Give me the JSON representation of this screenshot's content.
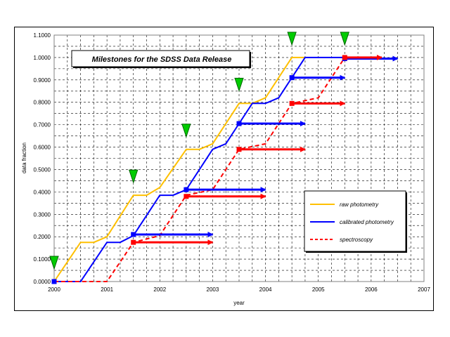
{
  "chart_data": {
    "type": "line",
    "title": "Milestones for the SDSS Data Release",
    "xlabel": "year",
    "ylabel": "data fraction",
    "xlim": [
      2000,
      2007
    ],
    "ylim": [
      0,
      1.1
    ],
    "grid": true,
    "legend_position": "lower-right",
    "x_ticks": [
      "2000",
      "2001",
      "2002",
      "2003",
      "2004",
      "2005",
      "2006",
      "2007"
    ],
    "y_ticks": [
      "0.0000",
      "0.1000",
      "0.2000",
      "0.3000",
      "0.4000",
      "0.5000",
      "0.6000",
      "0.7000",
      "0.8000",
      "0.9000",
      "1.0000",
      "1.1000"
    ],
    "series": [
      {
        "name": "raw photometry",
        "color": "#ffc000",
        "dash": "solid",
        "points": [
          [
            2000.0,
            0.0
          ],
          [
            2000.5,
            0.175
          ],
          [
            2000.75,
            0.175
          ],
          [
            2001.0,
            0.2
          ],
          [
            2001.5,
            0.385
          ],
          [
            2001.75,
            0.385
          ],
          [
            2002.0,
            0.42
          ],
          [
            2002.5,
            0.59
          ],
          [
            2002.75,
            0.59
          ],
          [
            2003.0,
            0.615
          ],
          [
            2003.5,
            0.795
          ],
          [
            2003.75,
            0.795
          ],
          [
            2004.0,
            0.82
          ],
          [
            2004.5,
            1.0
          ],
          [
            2004.75,
            1.0
          ]
        ]
      },
      {
        "name": "calibrated photometry",
        "color": "#0000ff",
        "dash": "solid",
        "points": [
          [
            2000.0,
            0.0
          ],
          [
            2000.5,
            0.0
          ],
          [
            2001.0,
            0.175
          ],
          [
            2001.25,
            0.175
          ],
          [
            2001.5,
            0.205
          ],
          [
            2002.0,
            0.385
          ],
          [
            2002.25,
            0.385
          ],
          [
            2002.5,
            0.41
          ],
          [
            2003.0,
            0.59
          ],
          [
            2003.25,
            0.615
          ],
          [
            2003.5,
            0.705
          ],
          [
            2003.75,
            0.795
          ],
          [
            2004.0,
            0.795
          ],
          [
            2004.25,
            0.82
          ],
          [
            2004.5,
            0.91
          ],
          [
            2004.75,
            1.0
          ],
          [
            2005.5,
            1.0
          ]
        ]
      },
      {
        "name": "spectroscopy",
        "color": "#ff0000",
        "dash": "dashed",
        "points": [
          [
            2000.0,
            0.0
          ],
          [
            2001.0,
            0.0
          ],
          [
            2001.5,
            0.175
          ],
          [
            2002.0,
            0.205
          ],
          [
            2002.5,
            0.385
          ],
          [
            2003.0,
            0.41
          ],
          [
            2003.5,
            0.59
          ],
          [
            2004.0,
            0.615
          ],
          [
            2004.5,
            0.795
          ],
          [
            2005.0,
            0.82
          ],
          [
            2005.5,
            1.0
          ]
        ]
      }
    ],
    "milestone_arrows": [
      {
        "color": "#0000ff",
        "x_start": 2001.5,
        "x_end": 2003.0,
        "y": 0.21,
        "marker": true
      },
      {
        "color": "#ff0000",
        "x_start": 2001.5,
        "x_end": 2003.0,
        "y": 0.175,
        "marker": true
      },
      {
        "color": "#0000ff",
        "x_start": 2002.5,
        "x_end": 2004.0,
        "y": 0.41,
        "marker": true
      },
      {
        "color": "#ff0000",
        "x_start": 2002.5,
        "x_end": 2004.0,
        "y": 0.38,
        "marker": true
      },
      {
        "color": "#0000ff",
        "x_start": 2003.5,
        "x_end": 2004.75,
        "y": 0.705,
        "marker": true
      },
      {
        "color": "#ff0000",
        "x_start": 2003.5,
        "x_end": 2004.75,
        "y": 0.59,
        "marker": true
      },
      {
        "color": "#0000ff",
        "x_start": 2004.5,
        "x_end": 2005.5,
        "y": 0.91,
        "marker": true
      },
      {
        "color": "#ff0000",
        "x_start": 2004.5,
        "x_end": 2005.5,
        "y": 0.795,
        "marker": true
      },
      {
        "color": "#0000ff",
        "x_start": 2005.5,
        "x_end": 2006.5,
        "y": 0.995,
        "marker": true
      },
      {
        "color": "#ff0000",
        "x_start": 2005.5,
        "x_end": 2006.2,
        "y": 1.0,
        "marker": true
      },
      {
        "color": "#0000ff",
        "x_start": 2000.0,
        "x_end": 2000.0,
        "y": 0.0,
        "marker": true
      }
    ],
    "milestone_flags": [
      {
        "x": 2000.0,
        "y": 0.0
      },
      {
        "x": 2001.5,
        "y": 0.385
      },
      {
        "x": 2002.5,
        "y": 0.59
      },
      {
        "x": 2003.5,
        "y": 0.795
      },
      {
        "x": 2004.5,
        "y": 1.0
      },
      {
        "x": 2005.5,
        "y": 1.0
      }
    ],
    "flag_color": "#00cc00"
  }
}
